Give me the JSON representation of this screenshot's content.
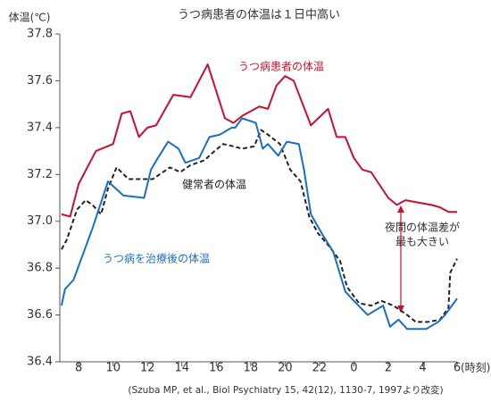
{
  "chart_data": {
    "type": "line",
    "title": "うつ病患者の体温は１日中高い",
    "ylabel": "体温(℃)",
    "xlabel": "(時刻)",
    "source": "(Szuba MP, et al., Biol Psychiatry 15, 42(12), 1130-7, 1997より改変)",
    "xlim": [
      6.9,
      30
    ],
    "xticks": [
      8,
      10,
      12,
      14,
      16,
      18,
      20,
      22,
      {
        "value": 24,
        "label": "0"
      },
      {
        "value": 26,
        "label": "2"
      },
      {
        "value": 28,
        "label": "4"
      },
      {
        "value": 30,
        "label": "6"
      }
    ],
    "ylim": [
      36.4,
      37.8
    ],
    "yticks": [
      36.4,
      36.6,
      36.8,
      {
        "value": 37,
        "label": "37.0"
      },
      37.2,
      37.4,
      37.6,
      37.8
    ],
    "series": [
      {
        "name": "うつ病患者の体温",
        "color": "#c8102e",
        "dash": false,
        "x": [
          7,
          7.5,
          8,
          9,
          10,
          10.5,
          11,
          11.5,
          12,
          12.5,
          13.5,
          14.5,
          15.5,
          16.5,
          17,
          17.5,
          18,
          18.5,
          19,
          19.5,
          20,
          20.5,
          21.5,
          22.5,
          23,
          23.5,
          24,
          24.5,
          25,
          26,
          26.5,
          27,
          28.5,
          29,
          29.5,
          30
        ],
        "values": [
          37.03,
          37.02,
          37.16,
          37.3,
          37.33,
          37.46,
          37.47,
          37.36,
          37.4,
          37.41,
          37.54,
          37.53,
          37.67,
          37.44,
          37.42,
          37.45,
          37.47,
          37.49,
          37.48,
          37.58,
          37.62,
          37.6,
          37.41,
          37.48,
          37.36,
          37.36,
          37.27,
          37.22,
          37.21,
          37.1,
          37.07,
          37.09,
          37.07,
          37.06,
          37.04,
          37.04
        ]
      },
      {
        "name": "健常者の体温",
        "color": "#222222",
        "dash": true,
        "x": [
          7,
          7.3,
          7.9,
          8.4,
          8.8,
          9.3,
          9.7,
          10.2,
          10.9,
          11.8,
          12.3,
          12.9,
          13.3,
          13.9,
          14.5,
          15.3,
          15.9,
          16.4,
          17,
          17.5,
          18.2,
          18.6,
          19,
          19.7,
          20.3,
          20.9,
          21.4,
          21.9,
          22.6,
          23.2,
          23.6,
          24.3,
          25,
          25.6,
          26.3,
          27.1,
          27.6,
          28.3,
          29,
          29.5,
          29.6,
          30
        ],
        "values": [
          36.88,
          36.92,
          37.05,
          37.09,
          37.07,
          37.03,
          37.14,
          37.23,
          37.18,
          37.18,
          37.18,
          37.21,
          37.23,
          37.21,
          37.24,
          37.26,
          37.3,
          37.33,
          37.32,
          37.31,
          37.32,
          37.39,
          37.37,
          37.33,
          37.22,
          37.17,
          37.02,
          36.95,
          36.89,
          36.83,
          36.72,
          36.65,
          36.64,
          36.66,
          36.64,
          36.6,
          36.57,
          36.57,
          36.58,
          36.63,
          36.78,
          36.84
        ]
      },
      {
        "name": "うつ病を治療後の体温",
        "color": "#1a6fc4",
        "dash": false,
        "x": [
          7,
          7.2,
          7.7,
          8.8,
          9.7,
          10,
          10.6,
          11.8,
          12.2,
          12.6,
          13.2,
          13.8,
          14.2,
          15,
          15.6,
          16.2,
          16.9,
          17.1,
          17.5,
          18.3,
          18.7,
          19,
          19.6,
          20.1,
          20.8,
          21.1,
          21.5,
          22.2,
          22.8,
          23.5,
          24,
          24.8,
          25.7,
          26.1,
          26.6,
          27.1,
          28.2,
          28.9,
          29.3,
          30
        ],
        "values": [
          36.64,
          36.71,
          36.75,
          36.97,
          37.17,
          37.15,
          37.11,
          37.1,
          37.22,
          37.27,
          37.34,
          37.31,
          37.25,
          37.27,
          37.36,
          37.37,
          37.4,
          37.4,
          37.44,
          37.42,
          37.31,
          37.33,
          37.28,
          37.34,
          37.33,
          37.22,
          37.03,
          36.94,
          36.87,
          36.7,
          36.66,
          36.6,
          36.64,
          36.55,
          36.58,
          36.54,
          36.54,
          36.57,
          36.6,
          36.67
        ]
      }
    ],
    "annotation": [
      "夜間の体温差が",
      "最も大きい"
    ]
  }
}
